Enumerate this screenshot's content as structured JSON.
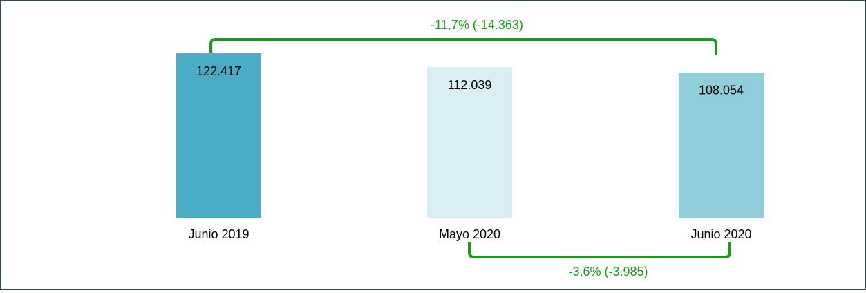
{
  "chart_data": {
    "type": "bar",
    "categories": [
      "Junio 2019",
      "Mayo 2020",
      "Junio 2020"
    ],
    "values": [
      122417,
      112039,
      108054
    ],
    "value_labels": [
      "122.417",
      "112.039",
      "108.054"
    ],
    "colors": [
      "#4bacc6",
      "#daeef3",
      "#92cddc"
    ],
    "ylim": [
      0,
      130000
    ],
    "annotations": [
      "-11,7% (-14.363)",
      "-3,6% (-3.985)"
    ]
  }
}
